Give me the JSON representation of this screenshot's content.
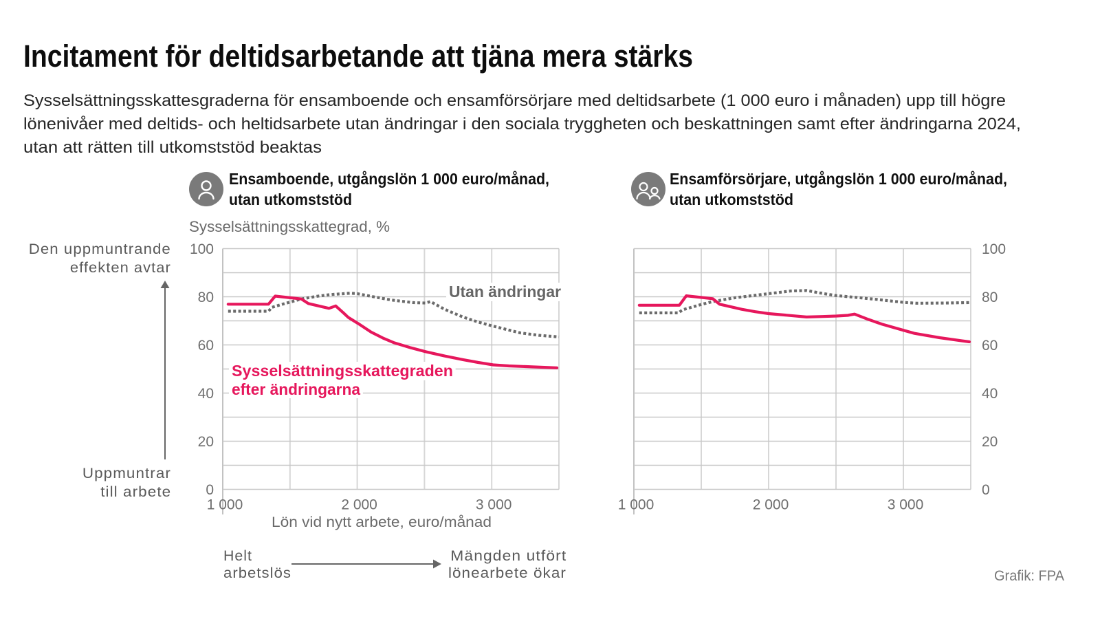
{
  "header": {
    "title": "Incitament för deltidsarbetande att tjäna mera stärks",
    "subtitle_lines": [
      "Sysselsättningsskattesgraderna för ensamboende och ensamförsörjare med deltidsarbete (1 000 euro i månaden) upp till högre",
      "lönenivåer med deltids- och heltidsarbete utan ändringar i den sociala tryggheten och beskattningen samt efter ändringarna 2024,",
      "utan att rätten till utkomststöd beaktas"
    ]
  },
  "chart_data": [
    {
      "type": "line",
      "title_lines": [
        "Ensamboende, utgångslön 1 000 euro/månad,",
        "utan utkomststöd"
      ],
      "icon": "person-icon",
      "ylabel": "Sysselsättningsskattegrad, %",
      "xlabel": "Lön vid nytt arbete, euro/månad",
      "xlim": [
        1000,
        3500
      ],
      "ylim": [
        0,
        100
      ],
      "y_axis_position": "left",
      "grid": {
        "on": true,
        "x_step": 500,
        "y_step": 10
      },
      "x_ticks": [
        {
          "value": 1000,
          "label": "1 000"
        },
        {
          "value": 2000,
          "label": "2 000"
        },
        {
          "value": 3000,
          "label": "3 000"
        }
      ],
      "y_ticks": [
        {
          "value": 0,
          "label": "0"
        },
        {
          "value": 20,
          "label": "20"
        },
        {
          "value": 40,
          "label": "40"
        },
        {
          "value": 60,
          "label": "60"
        },
        {
          "value": 80,
          "label": "80"
        },
        {
          "value": 100,
          "label": "100"
        }
      ],
      "series": [
        {
          "name": "Utan ändringar",
          "label_lines": [
            "Utan ändringar"
          ],
          "style": "dotted",
          "color": "#6b6b6b",
          "points": [
            [
              1040,
              74.0
            ],
            [
              1340,
              74.0
            ],
            [
              1365,
              75.6
            ],
            [
              1450,
              77.0
            ],
            [
              1585,
              79.1
            ],
            [
              1700,
              80.2
            ],
            [
              1800,
              80.9
            ],
            [
              1950,
              81.5
            ],
            [
              2002,
              81.3
            ],
            [
              2121,
              80.0
            ],
            [
              2250,
              78.7
            ],
            [
              2411,
              77.6
            ],
            [
              2508,
              77.4
            ],
            [
              2545,
              78.0
            ],
            [
              2650,
              74.8
            ],
            [
              2786,
              71.6
            ],
            [
              2900,
              69.5
            ],
            [
              3011,
              67.8
            ],
            [
              3212,
              65.0
            ],
            [
              3350,
              64.0
            ],
            [
              3500,
              63.3
            ]
          ]
        },
        {
          "name": "Sysselsättningsskattegraden efter ändringarna",
          "label_lines": [
            "Sysselsättningsskattegraden",
            "efter ändringarna"
          ],
          "style": "solid",
          "color": "#e6175c",
          "points": [
            [
              1040,
              76.9
            ],
            [
              1340,
              76.9
            ],
            [
              1390,
              80.3
            ],
            [
              1585,
              79.1
            ],
            [
              1636,
              77.2
            ],
            [
              1790,
              75.2
            ],
            [
              1840,
              76.2
            ],
            [
              1900,
              73.2
            ],
            [
              1934,
              71.4
            ],
            [
              2006,
              68.9
            ],
            [
              2104,
              65.3
            ],
            [
              2190,
              62.9
            ],
            [
              2275,
              60.9
            ],
            [
              2400,
              58.8
            ],
            [
              2508,
              57.2
            ],
            [
              2650,
              55.4
            ],
            [
              2786,
              53.9
            ],
            [
              2900,
              52.7
            ],
            [
              3011,
              51.7
            ],
            [
              3127,
              51.3
            ],
            [
              3300,
              50.9
            ],
            [
              3485,
              50.5
            ]
          ]
        }
      ]
    },
    {
      "type": "line",
      "title_lines": [
        "Ensamförsörjare, utgångslön 1 000 euro/månad,",
        "utan utkomststöd"
      ],
      "icon": "group-icon",
      "ylabel": "",
      "xlabel": "",
      "xlim": [
        1000,
        3500
      ],
      "ylim": [
        0,
        100
      ],
      "y_axis_position": "right",
      "grid": {
        "on": true,
        "x_step": 500,
        "y_step": 10
      },
      "x_ticks": [
        {
          "value": 1000,
          "label": "1 000"
        },
        {
          "value": 2000,
          "label": "2 000"
        },
        {
          "value": 3000,
          "label": "3 000"
        }
      ],
      "y_ticks": [
        {
          "value": 0,
          "label": "0"
        },
        {
          "value": 20,
          "label": "20"
        },
        {
          "value": 40,
          "label": "40"
        },
        {
          "value": 60,
          "label": "60"
        },
        {
          "value": 80,
          "label": "80"
        },
        {
          "value": 100,
          "label": "100"
        }
      ],
      "series": [
        {
          "name": "Utan ändringar",
          "style": "dotted",
          "color": "#6b6b6b",
          "points": [
            [
              1040,
              73.3
            ],
            [
              1330,
              73.3
            ],
            [
              1363,
              74.6
            ],
            [
              1500,
              76.8
            ],
            [
              1585,
              78.0
            ],
            [
              1750,
              79.6
            ],
            [
              2000,
              81.3
            ],
            [
              2163,
              82.4
            ],
            [
              2282,
              82.6
            ],
            [
              2400,
              81.4
            ],
            [
              2503,
              80.5
            ],
            [
              2638,
              79.8
            ],
            [
              2800,
              78.9
            ],
            [
              3000,
              77.7
            ],
            [
              3100,
              77.3
            ],
            [
              3300,
              77.4
            ],
            [
              3500,
              77.6
            ]
          ]
        },
        {
          "name": "Sysselsättningsskattegraden efter ändringarna",
          "style": "solid",
          "color": "#e6175c",
          "points": [
            [
              1040,
              76.5
            ],
            [
              1338,
              76.5
            ],
            [
              1389,
              80.4
            ],
            [
              1585,
              79.2
            ],
            [
              1636,
              76.9
            ],
            [
              1800,
              74.8
            ],
            [
              1900,
              73.8
            ],
            [
              2000,
              73.0
            ],
            [
              2163,
              72.2
            ],
            [
              2281,
              71.6
            ],
            [
              2400,
              71.8
            ],
            [
              2503,
              72.0
            ],
            [
              2587,
              72.3
            ],
            [
              2638,
              72.8
            ],
            [
              2740,
              70.6
            ],
            [
              2842,
              68.6
            ],
            [
              3000,
              66.1
            ],
            [
              3082,
              64.8
            ],
            [
              3269,
              63.0
            ],
            [
              3490,
              61.3
            ]
          ]
        }
      ]
    }
  ],
  "annotations": {
    "y_axis_top": [
      "Den uppmuntrande",
      "effekten avtar"
    ],
    "y_axis_bottom": [
      "Uppmuntrar",
      "till arbete"
    ],
    "x_axis_left": [
      "Helt",
      "arbetslös"
    ],
    "x_axis_right": [
      "Mängden utfört",
      "lönearbete ökar"
    ]
  },
  "credit": "Grafik: FPA",
  "colors": {
    "after_changes": "#e6175c",
    "without_changes": "#6b6b6b",
    "icon_background": "#7a7a7a",
    "arrow": "#666666"
  }
}
